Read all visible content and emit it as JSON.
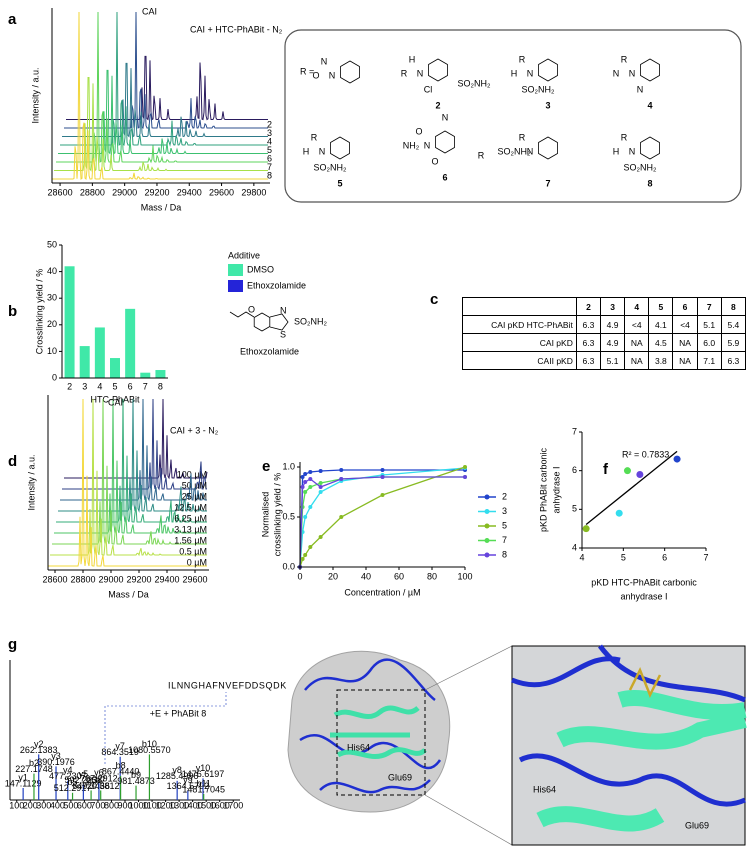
{
  "panel_labels": [
    "a",
    "b",
    "c",
    "d",
    "e",
    "f",
    "g"
  ],
  "chart_data": [
    {
      "type": "spectrum",
      "xlabel": "Mass / Da",
      "ylabel": "Intensity / a.u.",
      "annotations": [
        "CAI",
        "CAI + HTC-PhABit - N₂"
      ],
      "xlim": [
        28550,
        29900
      ],
      "xticks": [
        28600,
        28800,
        29000,
        29200,
        29400,
        29600,
        29800
      ],
      "series": [
        {
          "name": null,
          "color": "#2a1b5e"
        },
        {
          "name": "2",
          "color": "#2c4f8e"
        },
        {
          "name": "3",
          "color": "#2f7a8a"
        },
        {
          "name": "4",
          "color": "#2fa07e"
        },
        {
          "name": "5",
          "color": "#3cc070"
        },
        {
          "name": "6",
          "color": "#5ed45c"
        },
        {
          "name": "7",
          "color": "#a8e048"
        },
        {
          "name": "8",
          "color": "#f2d63a"
        }
      ]
    },
    {
      "type": "bar",
      "ylabel": "Crosslinking yield / %",
      "xlabel": "HTC-PhABit",
      "categories": [
        "2",
        "3",
        "4",
        "5",
        "6",
        "7",
        "8"
      ],
      "values": [
        42,
        12,
        19,
        7.5,
        26,
        2,
        3
      ],
      "color": "#40e8a8",
      "ylim": [
        0,
        50
      ],
      "yticks": [
        0,
        10,
        20,
        30,
        40,
        50
      ],
      "legend": {
        "title": "Additive",
        "entries": [
          {
            "name": "DMSO",
            "color": "#40e8a8"
          },
          {
            "name": "Ethoxzolamide",
            "color": "#2424d8"
          }
        ]
      },
      "molecule": {
        "label": "Ethoxzolamide",
        "groups": [
          "O",
          "S",
          "N",
          "SO₂NH₂"
        ]
      }
    },
    {
      "type": "spectrum",
      "xlabel": "Mass / Da",
      "ylabel": "Intensity / a.u.",
      "annotations": [
        "CAI",
        "CAI + 3 - N₂"
      ],
      "xlim": [
        28550,
        29700
      ],
      "xticks": [
        28600,
        28800,
        29000,
        29200,
        29400,
        29600
      ],
      "series": [
        {
          "name": "100 µM",
          "color": "#2a1b5e"
        },
        {
          "name": "50 µM",
          "color": "#2d3f85"
        },
        {
          "name": "25 µM",
          "color": "#2f668e"
        },
        {
          "name": "12.5 µM",
          "color": "#2d8c86"
        },
        {
          "name": "6.25 µM",
          "color": "#33ac78"
        },
        {
          "name": "3.13 µM",
          "color": "#4cc666"
        },
        {
          "name": "1.56 µM",
          "color": "#7bd655"
        },
        {
          "name": "0.5 µM",
          "color": "#b8e048"
        },
        {
          "name": "0 µM",
          "color": "#f3d83a"
        }
      ]
    },
    {
      "type": "line",
      "xlabel": "Concentration / µM",
      "ylabel": [
        "Normalised",
        "crosslinking yield / %"
      ],
      "x": [
        0,
        1.56,
        3.13,
        6.25,
        12.5,
        25,
        50,
        100
      ],
      "xlim": [
        0,
        100
      ],
      "xticks": [
        0,
        20,
        40,
        60,
        80,
        100
      ],
      "ylim": [
        0,
        1.05
      ],
      "yticks": [
        {
          "value": 0,
          "label": "0.0"
        },
        {
          "value": 0.5,
          "label": "0.5"
        },
        {
          "value": 1,
          "label": "1.0"
        }
      ],
      "series": [
        {
          "name": "2",
          "color": "#2244cc",
          "values": [
            0,
            0.9,
            0.93,
            0.95,
            0.96,
            0.97,
            0.97,
            0.97
          ]
        },
        {
          "name": "3",
          "color": "#33ddee",
          "values": [
            0,
            0.35,
            0.5,
            0.6,
            0.75,
            0.86,
            0.92,
            0.99
          ]
        },
        {
          "name": "5",
          "color": "#88bb22",
          "values": [
            0,
            0.08,
            0.12,
            0.2,
            0.3,
            0.5,
            0.72,
            1
          ]
        },
        {
          "name": "7",
          "color": "#55dd55",
          "values": [
            0,
            0.6,
            0.75,
            0.8,
            0.84,
            0.88,
            0.9,
            0.9
          ]
        },
        {
          "name": "8",
          "color": "#6644dd",
          "values": [
            0,
            0.8,
            0.85,
            0.88,
            0.8,
            0.88,
            0.9,
            0.9
          ]
        }
      ]
    },
    {
      "type": "scatter",
      "xlabel": [
        "pKD HTC-PhABit carbonic",
        "anhydrase I"
      ],
      "ylabel": [
        "pKD PhABit carbonic",
        "anhydrase I"
      ],
      "annotation": "R² = 0.7833",
      "x": [
        6.3,
        4.9,
        4.1,
        5.1,
        5.4
      ],
      "values": [
        6.3,
        4.9,
        4.5,
        6.0,
        5.9
      ],
      "colors": [
        "#2244cc",
        "#33ddee",
        "#88bb22",
        "#55dd55",
        "#6644dd"
      ],
      "xlim": [
        4,
        7
      ],
      "ylim": [
        4,
        7
      ],
      "xticks": [
        4,
        5,
        6,
        7
      ],
      "yticks": [
        4,
        5,
        6,
        7
      ]
    },
    {
      "type": "stem",
      "peptide": "ILNNGHAFNVEFDDSQDK",
      "annotation": "+E + PhABit 8",
      "xlim": [
        50,
        1750
      ],
      "xticks": [
        100,
        200,
        300,
        400,
        500,
        600,
        700,
        800,
        900,
        1000,
        1100,
        1200,
        1300,
        1400,
        1500,
        1600,
        1700
      ],
      "ylim": [
        0,
        100
      ],
      "colors": {
        "y": "#1f3fbf",
        "b": "#2e9e2e",
        "other": "#222222"
      },
      "ions": [
        {
          "name": "y1",
          "mz": "147.1129",
          "intensity": 10
        },
        {
          "name": "b2",
          "mz": "227.1748",
          "intensity": 22
        },
        {
          "name": "y2",
          "mz": "262.1383",
          "intensity": 38
        },
        {
          "name": "y3",
          "mz": "390.1976",
          "intensity": 28
        },
        {
          "name": "y4",
          "mz": "477.2307",
          "intensity": 16
        },
        {
          "name": "b5",
          "mz": "512.2917",
          "intensity": 6
        },
        {
          "name": "y5",
          "mz": "592.2238",
          "intensity": 13
        },
        {
          "name": "b6",
          "mz": "649.3466",
          "intensity": 8
        },
        {
          "name": "y6",
          "mz": "707.2912",
          "intensity": 14
        },
        {
          "name": "b7",
          "mz": "720.3812",
          "intensity": 8
        },
        {
          "name": "y7",
          "mz": "864.3519",
          "intensity": 36
        },
        {
          "name": "b8",
          "mz": "867.4440",
          "intensity": 20
        },
        {
          "name": "b9",
          "mz": "981.4873",
          "intensity": 12
        },
        {
          "name": "b10",
          "mz": "1080.5570",
          "intensity": 38
        },
        {
          "name": "y8",
          "mz": "1285.4996",
          "intensity": 16
        },
        {
          "name": "y9",
          "mz": "1364.5792",
          "intensity": 8
        },
        {
          "name": "y10",
          "mz": "1476.6197",
          "intensity": 18
        },
        {
          "name": "b11",
          "mz": "1481.7045",
          "intensity": 5
        }
      ]
    }
  ],
  "table": {
    "header": [
      "2",
      "3",
      "4",
      "5",
      "6",
      "7",
      "8"
    ],
    "rows": [
      {
        "label": "CAI pKD HTC-PhABit",
        "cells": [
          "6.3",
          "4.9",
          "<4",
          "4.1",
          "<4",
          "5.1",
          "5.4"
        ]
      },
      {
        "label": "CAI pKD",
        "cells": [
          "6.3",
          "4.9",
          "NA",
          "4.5",
          "NA",
          "6.0",
          "5.9"
        ]
      },
      {
        "label": "CAII pKD",
        "cells": [
          "6.3",
          "5.1",
          "NA",
          "3.8",
          "NA",
          "7.1",
          "6.3"
        ]
      }
    ]
  },
  "rgroups": {
    "prefix": "R =",
    "structures": [
      {
        "label": null,
        "texts": [
          "N",
          "N",
          "O"
        ]
      },
      {
        "label": "2",
        "texts": [
          "H",
          "N",
          "R",
          "Cl",
          "SO₂NH₂"
        ]
      },
      {
        "label": "3",
        "texts": [
          "R",
          "N",
          "H",
          "SO₂NH₂"
        ]
      },
      {
        "label": "4",
        "texts": [
          "R",
          "N",
          "N",
          "N"
        ]
      },
      {
        "label": "5",
        "texts": [
          "R",
          "N",
          "H",
          "SO₂NH₂"
        ]
      },
      {
        "label": "6",
        "texts": [
          "O",
          "N",
          "NH₂",
          "O",
          "R",
          "N"
        ]
      },
      {
        "label": "7",
        "texts": [
          "R",
          "N",
          "SO₂NH₂"
        ]
      },
      {
        "label": "8",
        "texts": [
          "R",
          "N",
          "H",
          "SO₂NH₂"
        ]
      }
    ]
  },
  "residues": [
    "His64",
    "Glu69"
  ]
}
